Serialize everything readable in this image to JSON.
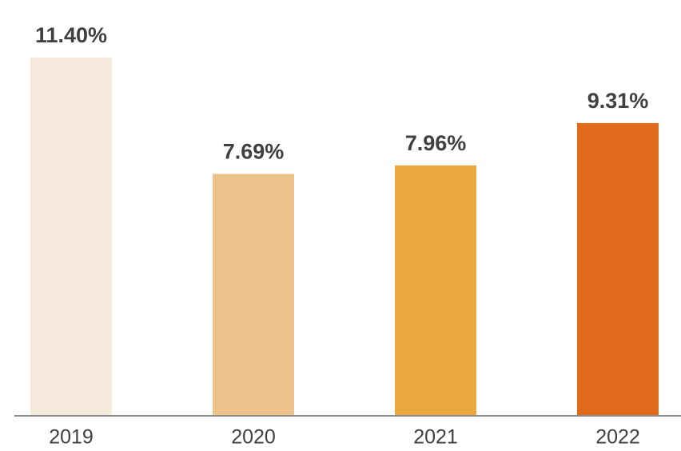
{
  "chart_data": {
    "type": "bar",
    "categories": [
      "2019",
      "2020",
      "2021",
      "2022"
    ],
    "values": [
      11.4,
      7.69,
      7.96,
      9.31
    ],
    "value_labels": [
      "11.40%",
      "7.69%",
      "7.96%",
      "9.31%"
    ],
    "colors": [
      "#f6eadc",
      "#eec28b",
      "#e8a83e",
      "#e06a1b"
    ]
  }
}
